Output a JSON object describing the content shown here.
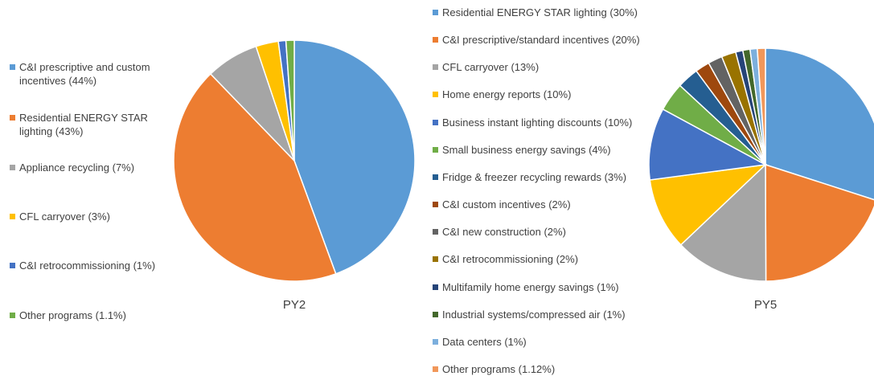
{
  "chart_data": [
    {
      "type": "pie",
      "title": "PY2",
      "categories": [
        "C&I prescriptive and custom incentives (44%)",
        "Residential ENERGY STAR lighting (43%)",
        "Appliance recycling (7%)",
        "CFL carryover (3%)",
        "C&I retrocommissioning (1%)",
        "Other programs (1.1%)"
      ],
      "values": [
        44,
        43,
        7,
        3,
        1,
        1.1
      ],
      "colors": [
        "#5b9bd5",
        "#ed7d31",
        "#a5a5a5",
        "#ffc000",
        "#4472c4",
        "#70ad47"
      ]
    },
    {
      "type": "pie",
      "title": "PY5",
      "categories": [
        "Residential ENERGY STAR lighting (30%)",
        "C&I prescriptive/standard incentives (20%)",
        "CFL carryover (13%)",
        "Home energy reports (10%)",
        "Business instant lighting discounts (10%)",
        "Small business energy savings (4%)",
        "Fridge & freezer recycling rewards (3%)",
        "C&I custom incentives (2%)",
        "C&I new construction (2%)",
        "C&I retrocommissioning (2%)",
        "Multifamily home energy savings (1%)",
        "Industrial systems/compressed air (1%)",
        "Data centers (1%)",
        "Other programs (1.12%)"
      ],
      "values": [
        30,
        20,
        13,
        10,
        10,
        4,
        3,
        2,
        2,
        2,
        1,
        1,
        1,
        1.12
      ],
      "colors": [
        "#5b9bd5",
        "#ed7d31",
        "#a5a5a5",
        "#ffc000",
        "#4472c4",
        "#70ad47",
        "#255e91",
        "#9e480e",
        "#636363",
        "#997300",
        "#264478",
        "#43682b",
        "#7cafdd",
        "#f1975a"
      ]
    }
  ]
}
